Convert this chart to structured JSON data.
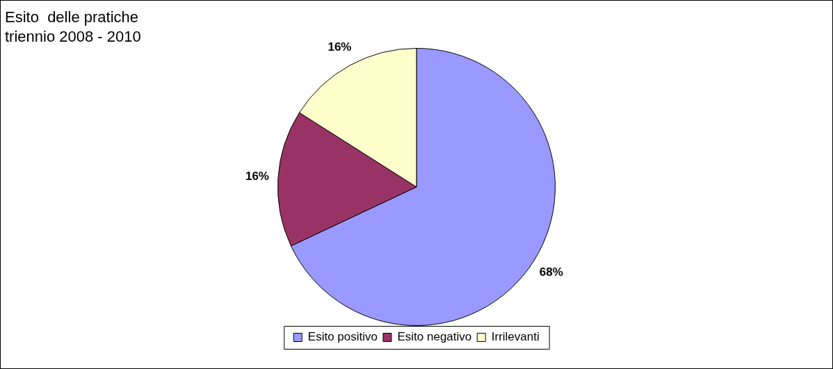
{
  "chart_data": {
    "type": "pie",
    "title": "Esito  delle pratiche",
    "subtitle": "triennio 2008 - 2010",
    "categories": [
      "Esito positivo",
      "Esito negativo",
      "Irrilevanti"
    ],
    "values": [
      68,
      16,
      16
    ],
    "colors": [
      "#9999ff",
      "#993366",
      "#ffffcc"
    ],
    "value_labels": [
      "68%",
      "16%",
      "16%"
    ],
    "legend": "bottom"
  }
}
